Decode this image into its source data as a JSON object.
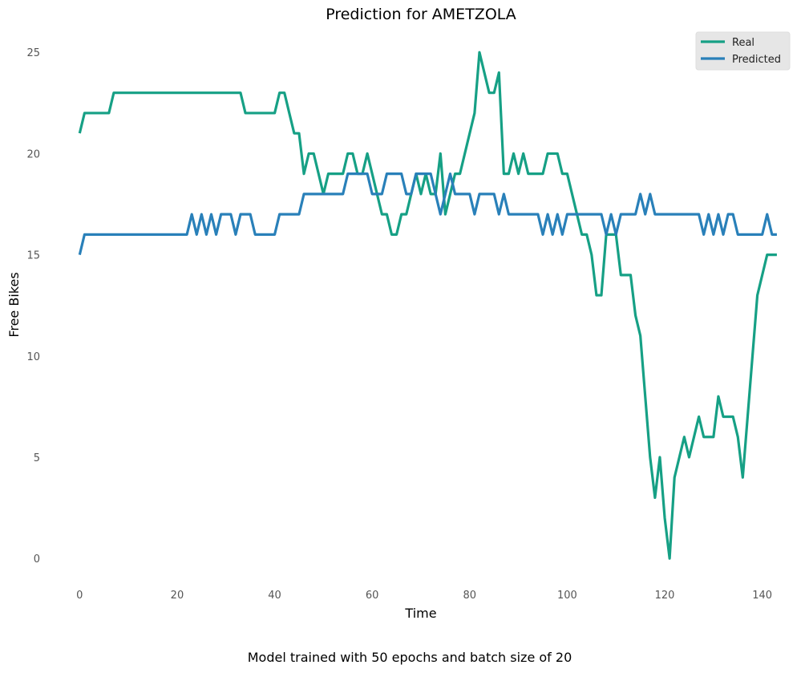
{
  "chart_data": {
    "type": "line",
    "title": "Prediction for AMETZOLA",
    "xlabel": "Time",
    "ylabel": "Free Bikes",
    "caption": "Model trained with 50 epochs and batch size of 20",
    "xlim": [
      -4,
      144
    ],
    "ylim": [
      -1.5,
      26
    ],
    "xticks": [
      0,
      20,
      40,
      60,
      80,
      100,
      120,
      140
    ],
    "yticks": [
      0,
      5,
      10,
      15,
      20,
      25
    ],
    "grid": false,
    "legend_position": "top-right",
    "series": [
      {
        "name": "Real",
        "color": "#16a085",
        "values": [
          21,
          22,
          22,
          22,
          22,
          22,
          22,
          23,
          23,
          23,
          23,
          23,
          23,
          23,
          23,
          23,
          23,
          23,
          23,
          23,
          23,
          23,
          23,
          23,
          23,
          23,
          23,
          23,
          23,
          23,
          23,
          23,
          23,
          23,
          22,
          22,
          22,
          22,
          22,
          22,
          22,
          23,
          23,
          22,
          21,
          21,
          19,
          20,
          20,
          19,
          18,
          19,
          19,
          19,
          19,
          20,
          20,
          19,
          19,
          20,
          19,
          18,
          17,
          17,
          16,
          16,
          17,
          17,
          18,
          19,
          18,
          19,
          18,
          18,
          20,
          17,
          18,
          19,
          19,
          20,
          21,
          22,
          25,
          24,
          23,
          23,
          24,
          19,
          19,
          20,
          19,
          20,
          19,
          19,
          19,
          19,
          20,
          20,
          20,
          19,
          19,
          18,
          17,
          16,
          16,
          15,
          13,
          13,
          16,
          16,
          16,
          14,
          14,
          14,
          12,
          11,
          8,
          5,
          3,
          5,
          2,
          0,
          4,
          5,
          6,
          5,
          6,
          7,
          6,
          6,
          6,
          8,
          7,
          7,
          7,
          6,
          4,
          7,
          10,
          13,
          14,
          15,
          15,
          15
        ]
      },
      {
        "name": "Predicted",
        "color": "#2980b9",
        "values": [
          15,
          16,
          16,
          16,
          16,
          16,
          16,
          16,
          16,
          16,
          16,
          16,
          16,
          16,
          16,
          16,
          16,
          16,
          16,
          16,
          16,
          16,
          16,
          17,
          16,
          17,
          16,
          17,
          16,
          17,
          17,
          17,
          16,
          17,
          17,
          17,
          16,
          16,
          16,
          16,
          16,
          17,
          17,
          17,
          17,
          17,
          18,
          18,
          18,
          18,
          18,
          18,
          18,
          18,
          18,
          19,
          19,
          19,
          19,
          19,
          18,
          18,
          18,
          19,
          19,
          19,
          19,
          18,
          18,
          19,
          19,
          19,
          19,
          18,
          17,
          18,
          19,
          18,
          18,
          18,
          18,
          17,
          18,
          18,
          18,
          18,
          17,
          18,
          17,
          17,
          17,
          17,
          17,
          17,
          17,
          16,
          17,
          16,
          17,
          16,
          17,
          17,
          17,
          17,
          17,
          17,
          17,
          17,
          16,
          17,
          16,
          17,
          17,
          17,
          17,
          18,
          17,
          18,
          17,
          17,
          17,
          17,
          17,
          17,
          17,
          17,
          17,
          17,
          16,
          17,
          16,
          17,
          16,
          17,
          17,
          16,
          16,
          16,
          16,
          16,
          16,
          17,
          16,
          16
        ]
      }
    ]
  }
}
